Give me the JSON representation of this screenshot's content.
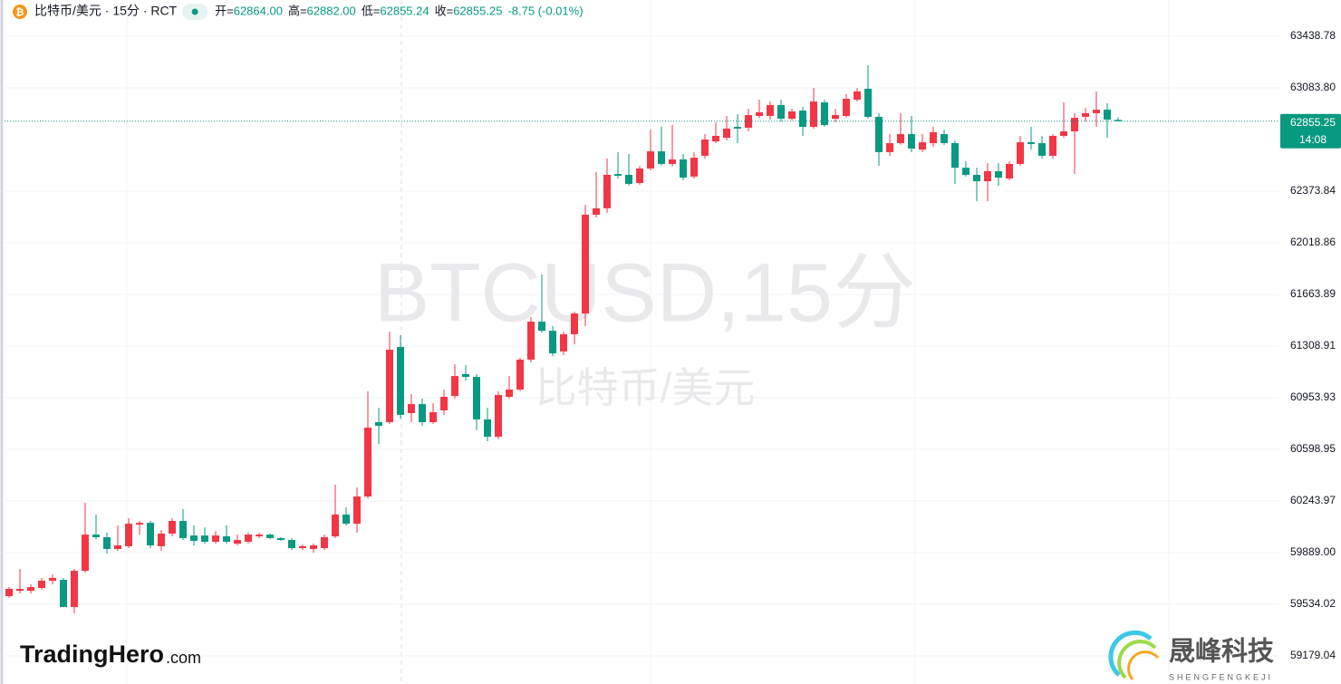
{
  "header": {
    "symbol": "比特币/美元 · 15分 · RCT",
    "ohlc": [
      {
        "key": "开=",
        "value": "62864.00"
      },
      {
        "key": "高=",
        "value": "62882.00"
      },
      {
        "key": "低=",
        "value": "62855.24"
      },
      {
        "key": "收=",
        "value": "62855.25"
      }
    ],
    "change": "-8.75 (-0.01%)"
  },
  "watermark": {
    "symbol": "BTCUSD,15分",
    "name": "比特币/美元"
  },
  "logos": {
    "left": "TradingHero",
    "left_suffix": ".com",
    "right": "晟峰科技",
    "right_sub": "SHENGFENGKEJI"
  },
  "chart_data": {
    "type": "candlestick",
    "up_color": "#f23645",
    "down_color": "#089981",
    "grid": true,
    "ylim": [
      58986,
      63688
    ],
    "yticks": [
      {
        "value": 59179.04,
        "label": "59179.04"
      },
      {
        "value": 59534.02,
        "label": "59534.02"
      },
      {
        "value": 59889.0,
        "label": "59889.00"
      },
      {
        "value": 60243.97,
        "label": "60243.97"
      },
      {
        "value": 60598.95,
        "label": "60598.95"
      },
      {
        "value": 60953.93,
        "label": "60953.93"
      },
      {
        "value": 61308.91,
        "label": "61308.91"
      },
      {
        "value": 61663.89,
        "label": "61663.89"
      },
      {
        "value": 62018.86,
        "label": "62018.86"
      },
      {
        "value": 62373.84,
        "label": "62373.84"
      },
      {
        "value": 63083.8,
        "label": "63083.80"
      },
      {
        "value": 63438.78,
        "label": "63438.78"
      }
    ],
    "last_price": 62855.25,
    "countdown": "14:08",
    "open": [
      59590,
      59627,
      59627,
      59646,
      59696,
      59702,
      59515,
      59764,
      60013,
      59995,
      59914,
      59933,
      60082,
      60094,
      59933,
      60020,
      60107,
      60007,
      60007,
      59964,
      60001,
      59951,
      59964,
      60001,
      60013,
      59989,
      59976,
      59920,
      59914,
      59920,
      60001,
      60151,
      60088,
      60275,
      60786,
      60786,
      61303,
      60848,
      60910,
      60786,
      60867,
      60966,
      61116,
      61097,
      60805,
      60686,
      60960,
      61010,
      61216,
      61477,
      61414,
      61272,
      61390,
      61533,
      62212,
      62256,
      62492,
      62486,
      62430,
      62530,
      62648,
      62561,
      62592,
      62474,
      62617,
      62716,
      62741,
      62816,
      62810,
      62891,
      62891,
      62966,
      62872,
      62928,
      62816,
      62984,
      62872,
      62891,
      63003,
      63078,
      62885,
      62642,
      62704,
      62766,
      62660,
      62704,
      62766,
      62704,
      62535,
      62486,
      62442,
      62511,
      62461,
      62561,
      62710,
      62704,
      62617,
      62754,
      62785,
      62885,
      62910,
      62934,
      62864
    ],
    "high": [
      59652,
      59777,
      59671,
      59715,
      59739,
      59715,
      59777,
      60232,
      60151,
      60026,
      60076,
      60126,
      60107,
      60107,
      60045,
      60126,
      60188,
      60076,
      60063,
      60038,
      60076,
      60013,
      60026,
      60026,
      60020,
      59995,
      59989,
      59945,
      59951,
      60013,
      60356,
      60200,
      60337,
      60998,
      60885,
      61408,
      61384,
      60979,
      60948,
      60917,
      61010,
      61184,
      61178,
      61116,
      60885,
      60998,
      61103,
      61228,
      61508,
      61801,
      61446,
      61408,
      61546,
      62280,
      62505,
      62598,
      62642,
      62629,
      62548,
      62797,
      62816,
      62829,
      62629,
      62642,
      62766,
      62847,
      62891,
      62903,
      62941,
      63003,
      62990,
      63003,
      62941,
      62953,
      63084,
      63003,
      62941,
      63040,
      63084,
      63240,
      62910,
      62766,
      62910,
      62891,
      62766,
      62816,
      62797,
      62723,
      62579,
      62535,
      62567,
      62567,
      62579,
      62754,
      62816,
      62754,
      62766,
      62984,
      62910,
      62947,
      63059,
      62978,
      62882
    ],
    "low": [
      59578,
      59609,
      59609,
      59634,
      59671,
      59515,
      59472,
      59752,
      59982,
      59883,
      59901,
      59920,
      60013,
      59920,
      59901,
      60001,
      59976,
      59939,
      59951,
      59951,
      59951,
      59939,
      59951,
      59989,
      59982,
      59970,
      59908,
      59908,
      59889,
      59908,
      59989,
      60076,
      60026,
      60263,
      60636,
      60773,
      60811,
      60786,
      60761,
      60773,
      60836,
      60948,
      61072,
      60730,
      60655,
      60667,
      60948,
      60998,
      61197,
      61402,
      61240,
      61247,
      61321,
      61446,
      62193,
      62224,
      62461,
      62411,
      62418,
      62517,
      62548,
      62542,
      62449,
      62461,
      62598,
      62704,
      62723,
      62704,
      62785,
      62878,
      62866,
      62853,
      62860,
      62754,
      62804,
      62816,
      62847,
      62878,
      62990,
      62872,
      62548,
      62617,
      62692,
      62642,
      62642,
      62679,
      62692,
      62424,
      62474,
      62305,
      62305,
      62411,
      62449,
      62548,
      62660,
      62598,
      62598,
      62741,
      62492,
      62853,
      62816,
      62741,
      62855.24
    ],
    "close": [
      59640,
      59640,
      59652,
      59696,
      59715,
      59515,
      59764,
      60013,
      59995,
      59914,
      59939,
      60088,
      60094,
      59939,
      60020,
      60107,
      59989,
      59970,
      59964,
      60007,
      59964,
      59976,
      60013,
      60013,
      59989,
      59976,
      59920,
      59933,
      59939,
      59995,
      60151,
      60088,
      60275,
      60748,
      60761,
      61284,
      60836,
      60910,
      60786,
      60854,
      60960,
      61103,
      61097,
      60805,
      60686,
      60973,
      61010,
      61216,
      61477,
      61414,
      61259,
      61390,
      61533,
      62212,
      62256,
      62486,
      62480,
      62424,
      62530,
      62648,
      62561,
      62592,
      62467,
      62604,
      62729,
      62754,
      62804,
      62804,
      62897,
      62916,
      62966,
      62872,
      62922,
      62816,
      62990,
      62829,
      62897,
      63009,
      63059,
      62885,
      62642,
      62704,
      62766,
      62667,
      62710,
      62779,
      62704,
      62535,
      62486,
      62442,
      62511,
      62467,
      62561,
      62710,
      62698,
      62617,
      62754,
      62785,
      62878,
      62910,
      62934,
      62866,
      62855.25
    ]
  }
}
